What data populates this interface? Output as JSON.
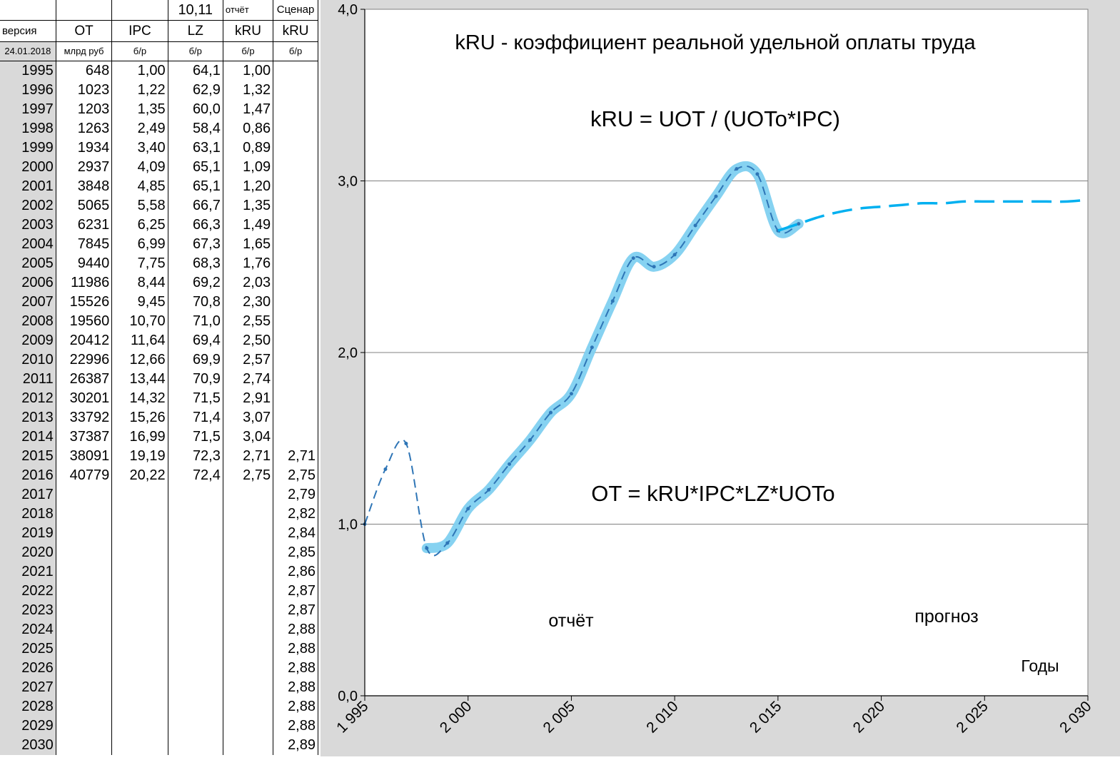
{
  "sheet": {
    "header_row1": [
      "",
      "",
      "",
      "10,11",
      "отчёт",
      "Сценар"
    ],
    "header_row2": [
      "версия",
      "OT",
      "IPC",
      "LZ",
      "kRU",
      "kRU"
    ],
    "header_row3": [
      "24.01.2018",
      "млрд руб",
      "б/р",
      "б/р",
      "б/р",
      "б/р"
    ],
    "rows": [
      [
        "1995",
        "648",
        "1,00",
        "64,1",
        "1,00",
        ""
      ],
      [
        "1996",
        "1023",
        "1,22",
        "62,9",
        "1,32",
        ""
      ],
      [
        "1997",
        "1203",
        "1,35",
        "60,0",
        "1,47",
        ""
      ],
      [
        "1998",
        "1263",
        "2,49",
        "58,4",
        "0,86",
        ""
      ],
      [
        "1999",
        "1934",
        "3,40",
        "63,1",
        "0,89",
        ""
      ],
      [
        "2000",
        "2937",
        "4,09",
        "65,1",
        "1,09",
        ""
      ],
      [
        "2001",
        "3848",
        "4,85",
        "65,1",
        "1,20",
        ""
      ],
      [
        "2002",
        "5065",
        "5,58",
        "66,7",
        "1,35",
        ""
      ],
      [
        "2003",
        "6231",
        "6,25",
        "66,3",
        "1,49",
        ""
      ],
      [
        "2004",
        "7845",
        "6,99",
        "67,3",
        "1,65",
        ""
      ],
      [
        "2005",
        "9440",
        "7,75",
        "68,3",
        "1,76",
        ""
      ],
      [
        "2006",
        "11986",
        "8,44",
        "69,2",
        "2,03",
        ""
      ],
      [
        "2007",
        "15526",
        "9,45",
        "70,8",
        "2,30",
        ""
      ],
      [
        "2008",
        "19560",
        "10,70",
        "71,0",
        "2,55",
        ""
      ],
      [
        "2009",
        "20412",
        "11,64",
        "69,4",
        "2,50",
        ""
      ],
      [
        "2010",
        "22996",
        "12,66",
        "69,9",
        "2,57",
        ""
      ],
      [
        "2011",
        "26387",
        "13,44",
        "70,9",
        "2,74",
        ""
      ],
      [
        "2012",
        "30201",
        "14,32",
        "71,5",
        "2,91",
        ""
      ],
      [
        "2013",
        "33792",
        "15,26",
        "71,4",
        "3,07",
        ""
      ],
      [
        "2014",
        "37387",
        "16,99",
        "71,5",
        "3,04",
        ""
      ],
      [
        "2015",
        "38091",
        "19,19",
        "72,3",
        "2,71",
        "2,71"
      ],
      [
        "2016",
        "40779",
        "20,22",
        "72,4",
        "2,75",
        "2,75"
      ],
      [
        "2017",
        "",
        "",
        "",
        "",
        "2,79"
      ],
      [
        "2018",
        "",
        "",
        "",
        "",
        "2,82"
      ],
      [
        "2019",
        "",
        "",
        "",
        "",
        "2,84"
      ],
      [
        "2020",
        "",
        "",
        "",
        "",
        "2,85"
      ],
      [
        "2021",
        "",
        "",
        "",
        "",
        "2,86"
      ],
      [
        "2022",
        "",
        "",
        "",
        "",
        "2,87"
      ],
      [
        "2023",
        "",
        "",
        "",
        "",
        "2,87"
      ],
      [
        "2024",
        "",
        "",
        "",
        "",
        "2,88"
      ],
      [
        "2025",
        "",
        "",
        "",
        "",
        "2,88"
      ],
      [
        "2026",
        "",
        "",
        "",
        "",
        "2,88"
      ],
      [
        "2027",
        "",
        "",
        "",
        "",
        "2,88"
      ],
      [
        "2028",
        "",
        "",
        "",
        "",
        "2,88"
      ],
      [
        "2029",
        "",
        "",
        "",
        "",
        "2,88"
      ],
      [
        "2030",
        "",
        "",
        "",
        "",
        "2,89"
      ]
    ]
  },
  "chart_data": {
    "type": "line",
    "title": "kRU - коэффициент реальной удельной оплаты труда",
    "annotations": [
      "kRU = UOT / (UOTo*IPC)",
      "OT = kRU*IPC*LZ*UOTo",
      "отчёт",
      "прогноз"
    ],
    "xlabel": "Годы",
    "ylabel": "",
    "xlim": [
      1995,
      2030
    ],
    "ylim": [
      0,
      4
    ],
    "x_ticks": [
      "1 995",
      "2 000",
      "2 005",
      "2 010",
      "2 015",
      "2 020",
      "2 025",
      "2 030"
    ],
    "y_ticks": [
      "0,0",
      "1,0",
      "2,0",
      "3,0",
      "4,0"
    ],
    "grid": "horizontal",
    "series": [
      {
        "style": "highlight-band",
        "color": "#7fd0f0",
        "x": [
          1998,
          1999,
          2000,
          2001,
          2002,
          2003,
          2004,
          2005,
          2006,
          2007,
          2008,
          2009,
          2010,
          2011,
          2012,
          2013,
          2014,
          2015,
          2016
        ],
        "values": [
          0.86,
          0.89,
          1.09,
          1.2,
          1.35,
          1.49,
          1.65,
          1.76,
          2.03,
          2.3,
          2.55,
          2.5,
          2.57,
          2.74,
          2.91,
          3.07,
          3.04,
          2.71,
          2.75
        ]
      },
      {
        "style": "dashed-markers",
        "color": "#2e75b6",
        "x": [
          1995,
          1996,
          1997,
          1998,
          1999,
          2000,
          2001,
          2002,
          2003,
          2004,
          2005,
          2006,
          2007,
          2008,
          2009,
          2010,
          2011,
          2012,
          2013,
          2014,
          2015,
          2016
        ],
        "values": [
          1.0,
          1.32,
          1.47,
          0.86,
          0.89,
          1.09,
          1.2,
          1.35,
          1.49,
          1.65,
          1.76,
          2.03,
          2.3,
          2.55,
          2.5,
          2.57,
          2.74,
          2.91,
          3.07,
          3.04,
          2.71,
          2.75
        ]
      },
      {
        "style": "long-dash",
        "color": "#00b0f0",
        "x": [
          2015,
          2016,
          2017,
          2018,
          2019,
          2020,
          2021,
          2022,
          2023,
          2024,
          2025,
          2026,
          2027,
          2028,
          2029,
          2030
        ],
        "values": [
          2.71,
          2.75,
          2.79,
          2.82,
          2.84,
          2.85,
          2.86,
          2.87,
          2.87,
          2.88,
          2.88,
          2.88,
          2.88,
          2.88,
          2.88,
          2.89
        ]
      }
    ]
  }
}
